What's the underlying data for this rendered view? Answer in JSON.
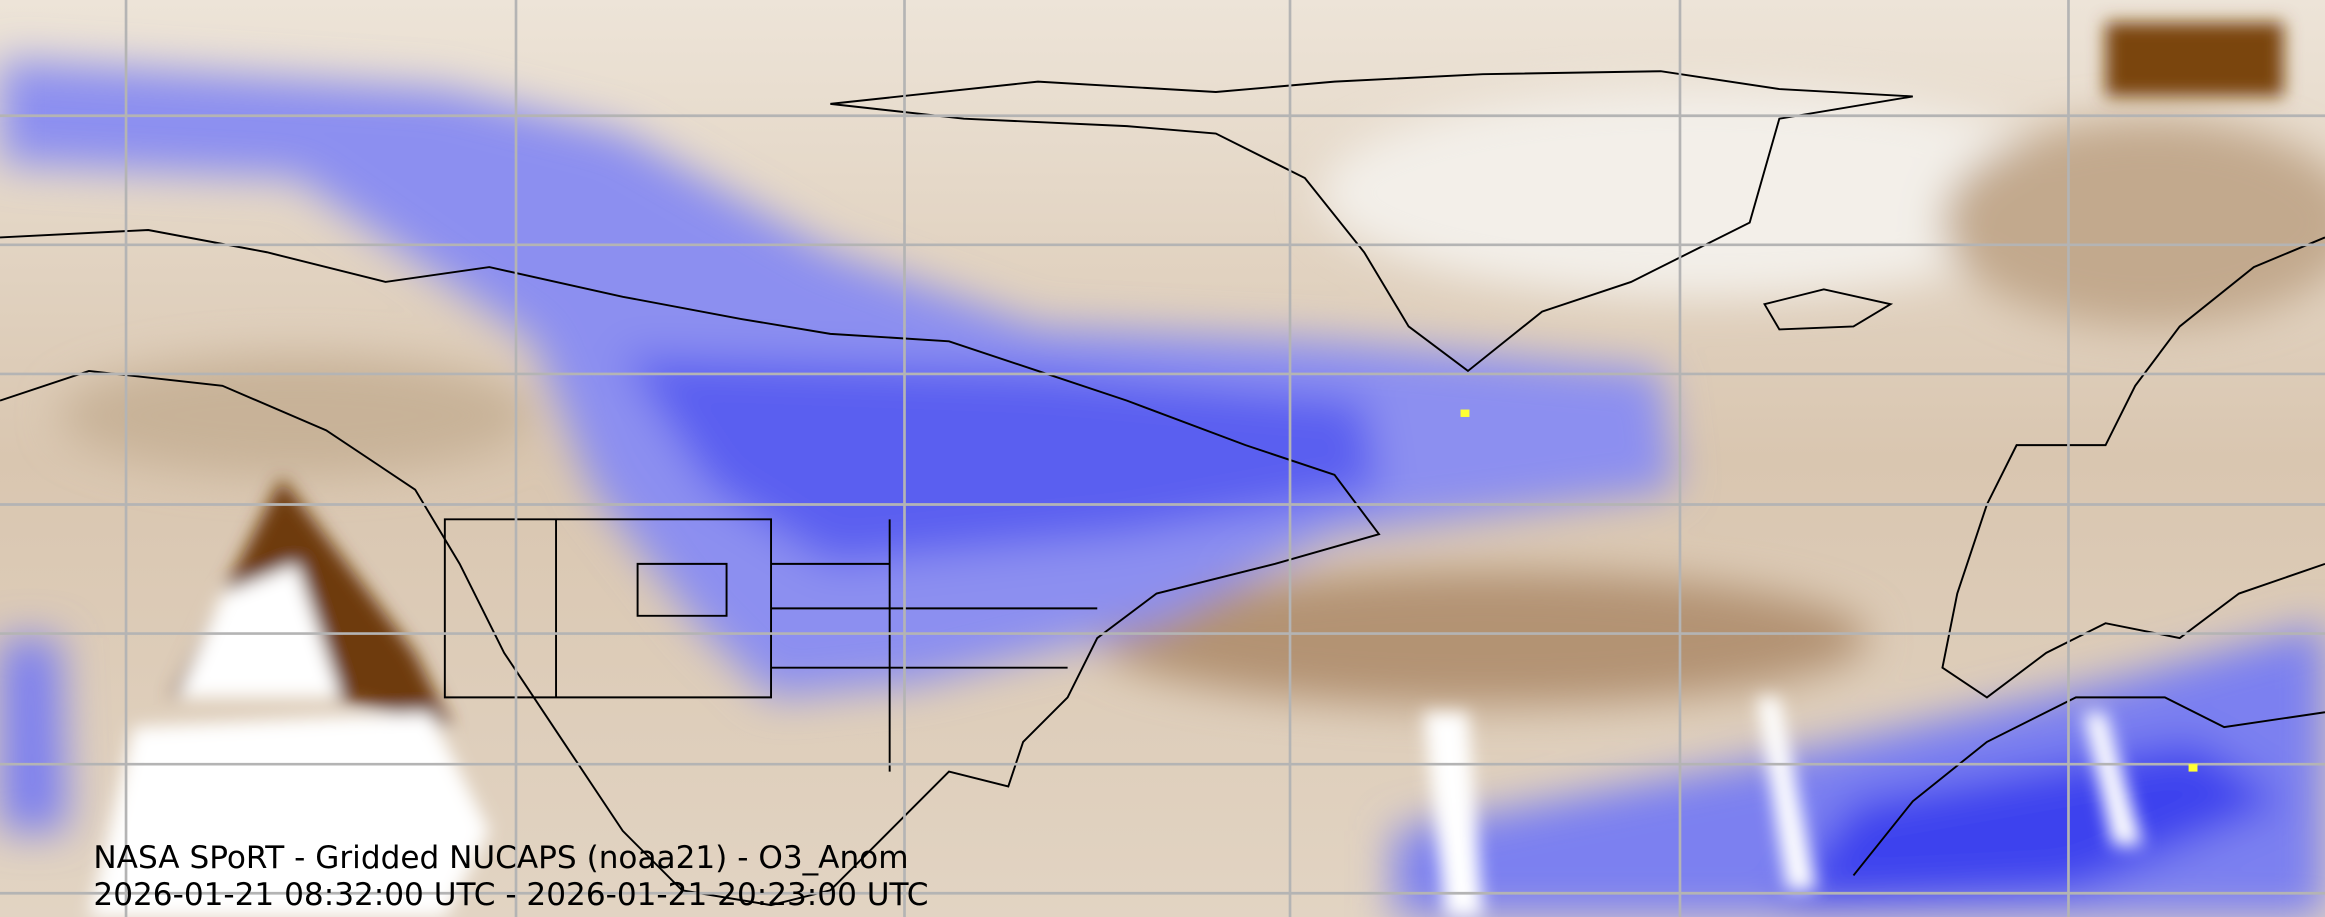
{
  "caption": {
    "title": "NASA SPoRT - Gridded NUCAPS (noaa21) - O3_Anom",
    "time_range": "2026-01-21 08:32:00 UTC - 2026-01-21 20:23:00 UTC"
  }
}
